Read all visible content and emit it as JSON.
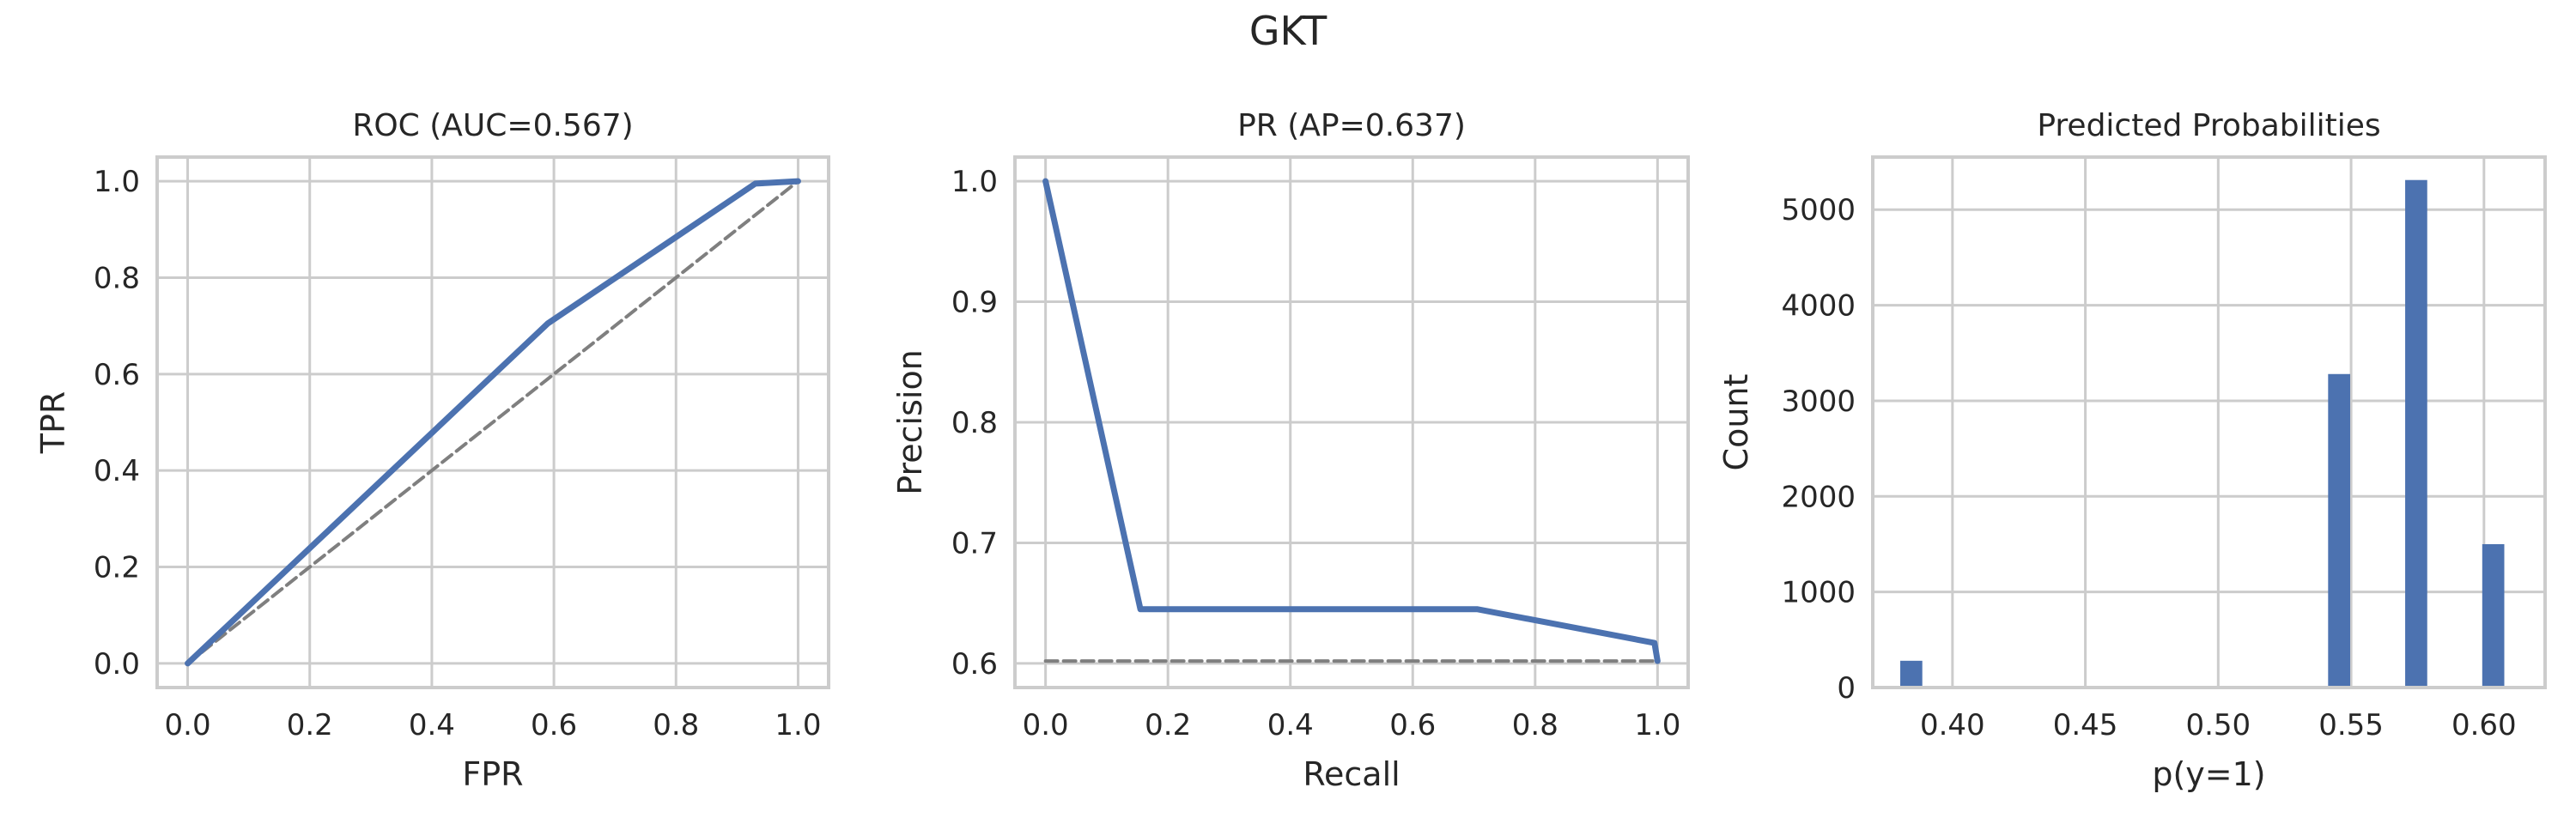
{
  "figure_title": "GKT",
  "chart_data": [
    {
      "type": "line",
      "title": "ROC (AUC=0.567)",
      "xlabel": "FPR",
      "ylabel": "TPR",
      "xlim": [
        -0.05,
        1.05
      ],
      "ylim": [
        -0.05,
        1.05
      ],
      "xticks": [
        0.0,
        0.2,
        0.4,
        0.6,
        0.8,
        1.0
      ],
      "yticks": [
        0.0,
        0.2,
        0.4,
        0.6,
        0.8,
        1.0
      ],
      "tick_decimals": 1,
      "grid": true,
      "series": [
        {
          "x": [
            0.0,
            0.59,
            0.93,
            1.0
          ],
          "y": [
            0.0,
            0.705,
            0.995,
            1.0
          ],
          "color": "#4c72b0",
          "style": "solid"
        },
        {
          "x": [
            0.0,
            1.0
          ],
          "y": [
            0.0,
            1.0
          ],
          "color": "#7f7f7f",
          "style": "dashed"
        }
      ]
    },
    {
      "type": "line",
      "title": "PR (AP=0.637)",
      "xlabel": "Recall",
      "ylabel": "Precision",
      "xlim": [
        -0.05,
        1.05
      ],
      "ylim": [
        0.58,
        1.02
      ],
      "xticks": [
        0.0,
        0.2,
        0.4,
        0.6,
        0.8,
        1.0
      ],
      "yticks": [
        0.6,
        0.7,
        0.8,
        0.9,
        1.0
      ],
      "tick_decimals": 1,
      "grid": true,
      "series": [
        {
          "x": [
            0.0,
            0.155,
            0.705,
            0.995,
            1.0
          ],
          "y": [
            1.0,
            0.645,
            0.645,
            0.617,
            0.602
          ],
          "color": "#4c72b0",
          "style": "solid"
        },
        {
          "x": [
            0.0,
            1.0
          ],
          "y": [
            0.602,
            0.602
          ],
          "color": "#7f7f7f",
          "style": "dashed"
        }
      ]
    },
    {
      "type": "bar",
      "title": "Predicted Probabilities",
      "xlabel": "p(y=1)",
      "ylabel": "Count",
      "xlim": [
        0.37,
        0.623
      ],
      "ylim": [
        0,
        5550
      ],
      "xticks": [
        0.4,
        0.45,
        0.5,
        0.55,
        0.6
      ],
      "yticks": [
        0,
        1000,
        2000,
        3000,
        4000,
        5000
      ],
      "xtick_decimals": 2,
      "ytick_decimals": 0,
      "grid": true,
      "bar_width": 0.0083,
      "color": "#4c72b0",
      "bars": [
        {
          "x": 0.3845,
          "count": 280
        },
        {
          "x": 0.5455,
          "count": 3280
        },
        {
          "x": 0.5745,
          "count": 5310
        },
        {
          "x": 0.6035,
          "count": 1500
        }
      ]
    }
  ]
}
